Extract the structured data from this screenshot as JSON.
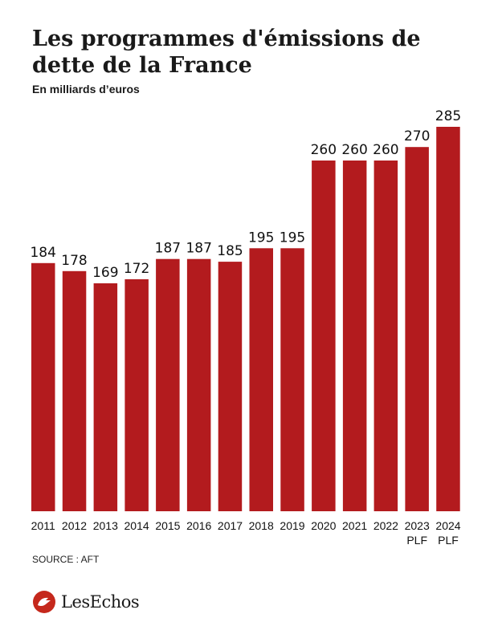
{
  "chart_data": {
    "type": "bar",
    "title": "Les programmes d'émissions de dette de la France",
    "subtitle": "En milliards d’euros",
    "categories": [
      "2011",
      "2012",
      "2013",
      "2014",
      "2015",
      "2016",
      "2017",
      "2018",
      "2019",
      "2020",
      "2021",
      "2022",
      "2023",
      "2024"
    ],
    "category_sublabels": [
      "",
      "",
      "",
      "",
      "",
      "",
      "",
      "",
      "",
      "",
      "",
      "",
      "PLF",
      "PLF"
    ],
    "values": [
      184,
      178,
      169,
      172,
      187,
      187,
      185,
      195,
      195,
      260,
      260,
      260,
      270,
      285
    ],
    "ylim": [
      0,
      285
    ],
    "bar_color": "#b31b1e",
    "grid": false,
    "legend": "none"
  },
  "footer": {
    "source": "SOURCE : AFT",
    "brand": "LesEchos"
  },
  "colors": {
    "bar": "#b31b1e",
    "brand_mark": "#c5281c"
  }
}
